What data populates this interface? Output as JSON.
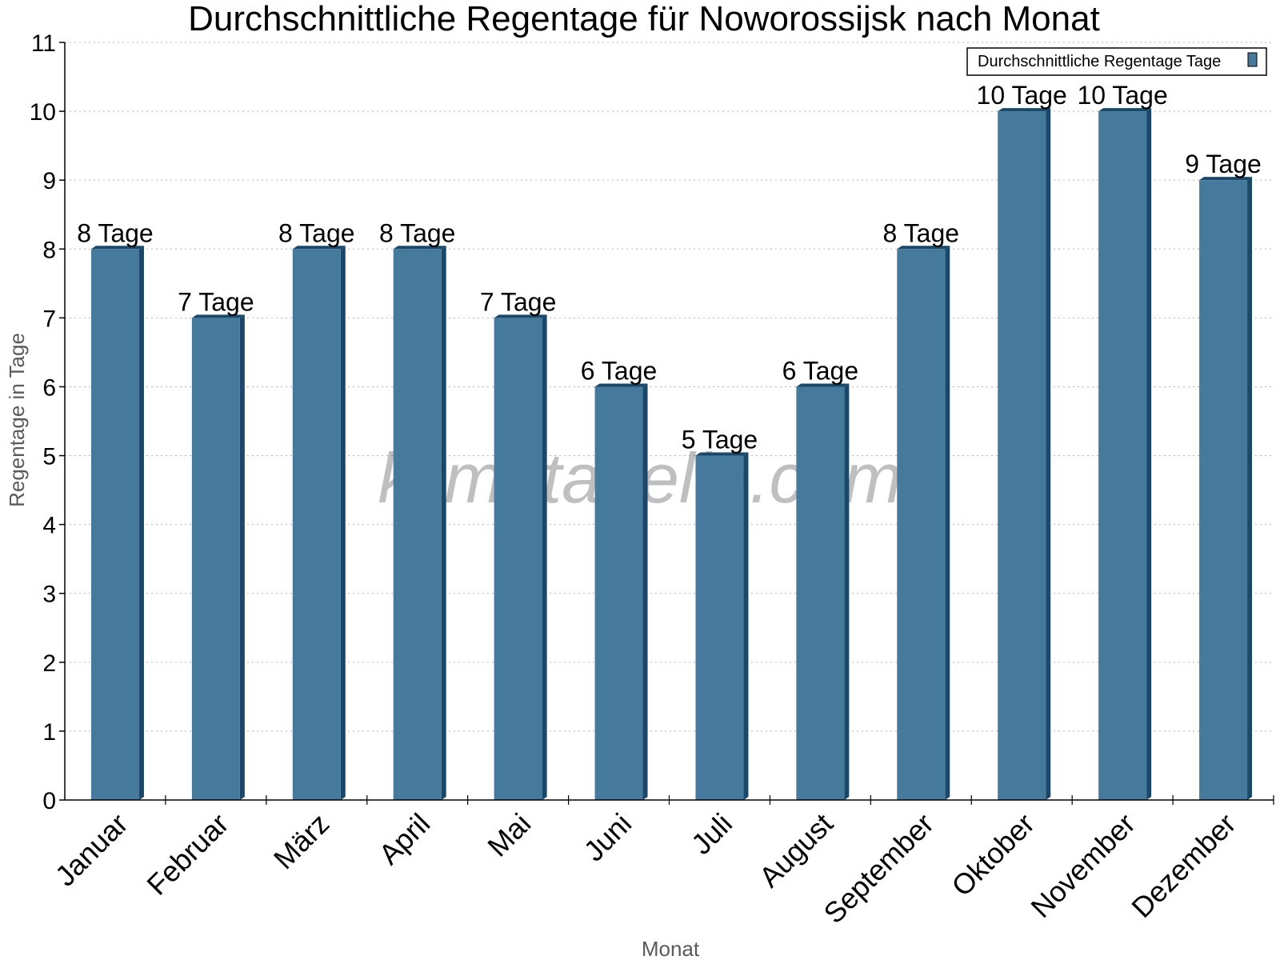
{
  "chart_data": {
    "type": "bar",
    "title": "Durchschnittliche Regentage für Noworossijsk nach Monat",
    "xlabel": "Monat",
    "ylabel": "Regentage in Tage",
    "ylim": [
      0,
      11
    ],
    "yticks": [
      0,
      1,
      2,
      3,
      4,
      5,
      6,
      7,
      8,
      9,
      10,
      11
    ],
    "grid": true,
    "legend_position": "top-right",
    "categories": [
      "Januar",
      "Februar",
      "März",
      "April",
      "Mai",
      "Juni",
      "Juli",
      "August",
      "September",
      "Oktober",
      "November",
      "Dezember"
    ],
    "series": [
      {
        "name": "Durchschnittliche Regentage Tage",
        "values": [
          8,
          7,
          8,
          8,
          7,
          6,
          5,
          6,
          8,
          10,
          10,
          9
        ],
        "labels": [
          "8 Tage",
          "7 Tage",
          "8 Tage",
          "8 Tage",
          "7 Tage",
          "6 Tage",
          "5 Tage",
          "6 Tage",
          "8 Tage",
          "10 Tage",
          "10 Tage",
          "9 Tage"
        ],
        "color": "#467a9c",
        "side_color": "#1b4868"
      }
    ]
  },
  "watermark": "klimatabelle.com"
}
